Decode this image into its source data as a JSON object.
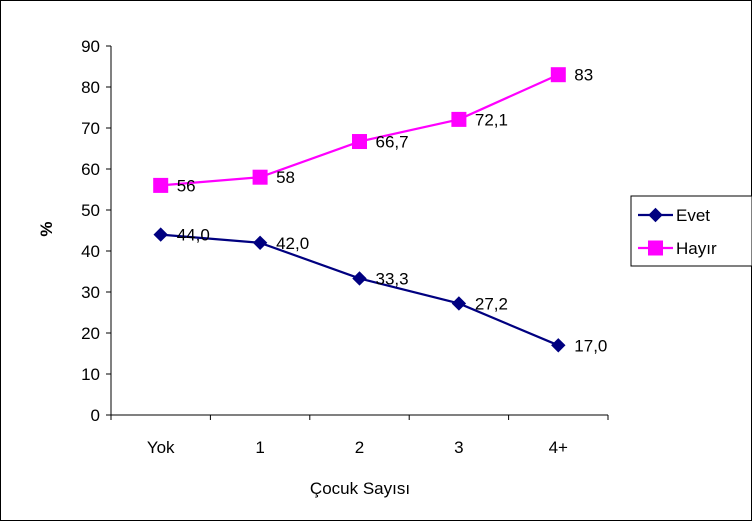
{
  "chart_data": {
    "type": "line",
    "title": "",
    "xlabel": "Çocuk Sayısı",
    "ylabel": "%",
    "categories": [
      "Yok",
      "1",
      "2",
      "3",
      "4+"
    ],
    "ylim": [
      0,
      90
    ],
    "yticks": [
      0,
      10,
      20,
      30,
      40,
      50,
      60,
      70,
      80,
      90
    ],
    "grid": false,
    "legend_position": "right",
    "series": [
      {
        "name": "Evet",
        "values": [
          44.0,
          42.0,
          33.3,
          27.2,
          17.0
        ],
        "labels": [
          "44,0",
          "42,0",
          "33,3",
          "27,2",
          "17,0"
        ],
        "color": "#000080",
        "marker": "diamond"
      },
      {
        "name": "Hayır",
        "values": [
          56,
          58,
          66.7,
          72.1,
          83
        ],
        "labels": [
          "56",
          "58",
          "66,7",
          "72,1",
          "83"
        ],
        "color": "#FF00FF",
        "marker": "square"
      }
    ]
  }
}
